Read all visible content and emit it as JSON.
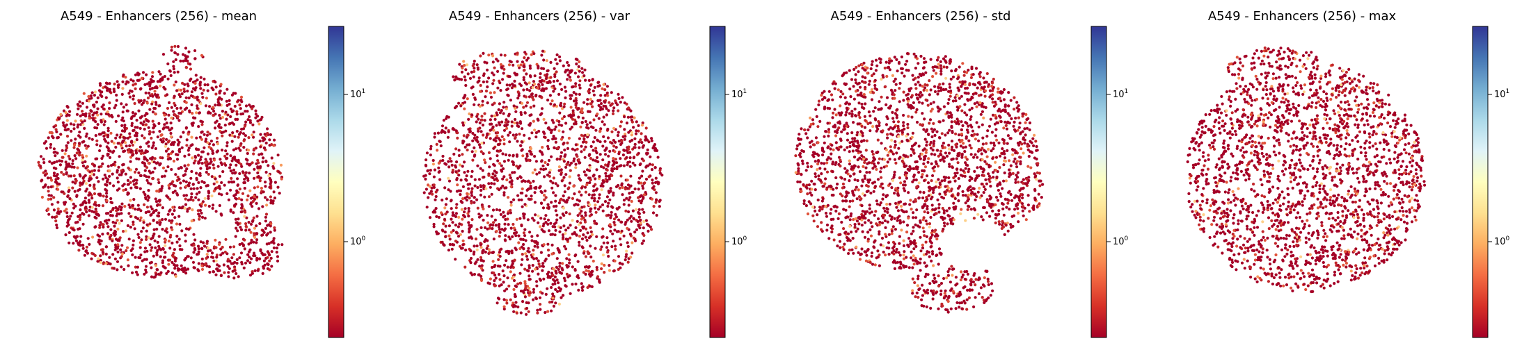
{
  "chart_data": [
    {
      "type": "scatter",
      "title": "A549 - Enhancers (256) - mean",
      "xlabel": "",
      "ylabel": "",
      "axes_visible": false,
      "colormap": "RdYlBu",
      "colorbar": {
        "scale": "log",
        "range": [
          0.25,
          28
        ],
        "ticks": [
          {
            "base": "10",
            "exp": "0"
          },
          {
            "base": "10",
            "exp": "1"
          }
        ]
      },
      "shape": [
        {
          "cx": 0.5,
          "cy": 0.47,
          "rx": 0.44,
          "ry": 0.36
        },
        {
          "cx": 0.58,
          "cy": 0.07,
          "rx": 0.08,
          "ry": 0.045
        },
        {
          "cx": 0.78,
          "cy": 0.72,
          "rx": 0.16,
          "ry": 0.12
        }
      ],
      "holes": [
        {
          "cx": 0.7,
          "cy": 0.66,
          "rx": 0.07,
          "ry": 0.04
        }
      ]
    },
    {
      "type": "scatter",
      "title": "A549 - Enhancers (256) - var",
      "xlabel": "",
      "ylabel": "",
      "axes_visible": false,
      "colormap": "RdYlBu",
      "colorbar": {
        "scale": "log",
        "range": [
          0.25,
          28
        ],
        "ticks": [
          {
            "base": "10",
            "exp": "0"
          },
          {
            "base": "10",
            "exp": "1"
          }
        ]
      },
      "shape": [
        {
          "cx": 0.5,
          "cy": 0.5,
          "rx": 0.43,
          "ry": 0.4
        },
        {
          "cx": 0.42,
          "cy": 0.12,
          "rx": 0.25,
          "ry": 0.08
        },
        {
          "cx": 0.45,
          "cy": 0.91,
          "rx": 0.12,
          "ry": 0.05
        }
      ],
      "holes": []
    },
    {
      "type": "scatter",
      "title": "A549 - Enhancers (256) - std",
      "xlabel": "",
      "ylabel": "",
      "axes_visible": false,
      "colormap": "RdYlBu",
      "colorbar": {
        "scale": "log",
        "range": [
          0.25,
          28
        ],
        "ticks": [
          {
            "base": "10",
            "exp": "0"
          },
          {
            "base": "10",
            "exp": "1"
          }
        ]
      },
      "shape": [
        {
          "cx": 0.47,
          "cy": 0.43,
          "rx": 0.44,
          "ry": 0.38
        },
        {
          "cx": 0.6,
          "cy": 0.86,
          "rx": 0.15,
          "ry": 0.1
        },
        {
          "cx": 0.85,
          "cy": 0.52,
          "rx": 0.08,
          "ry": 0.12
        }
      ],
      "holes": [
        {
          "cx": 0.68,
          "cy": 0.72,
          "rx": 0.12,
          "ry": 0.09
        }
      ]
    },
    {
      "type": "scatter",
      "title": "A549 - Enhancers (256) - max",
      "xlabel": "",
      "ylabel": "",
      "axes_visible": false,
      "colormap": "RdYlBu",
      "colorbar": {
        "scale": "log",
        "range": [
          0.25,
          28
        ],
        "ticks": [
          {
            "base": "10",
            "exp": "0"
          },
          {
            "base": "10",
            "exp": "1"
          }
        ]
      },
      "shape": [
        {
          "cx": 0.5,
          "cy": 0.48,
          "rx": 0.43,
          "ry": 0.4
        },
        {
          "cx": 0.4,
          "cy": 0.1,
          "rx": 0.18,
          "ry": 0.07
        }
      ],
      "holes": []
    }
  ]
}
